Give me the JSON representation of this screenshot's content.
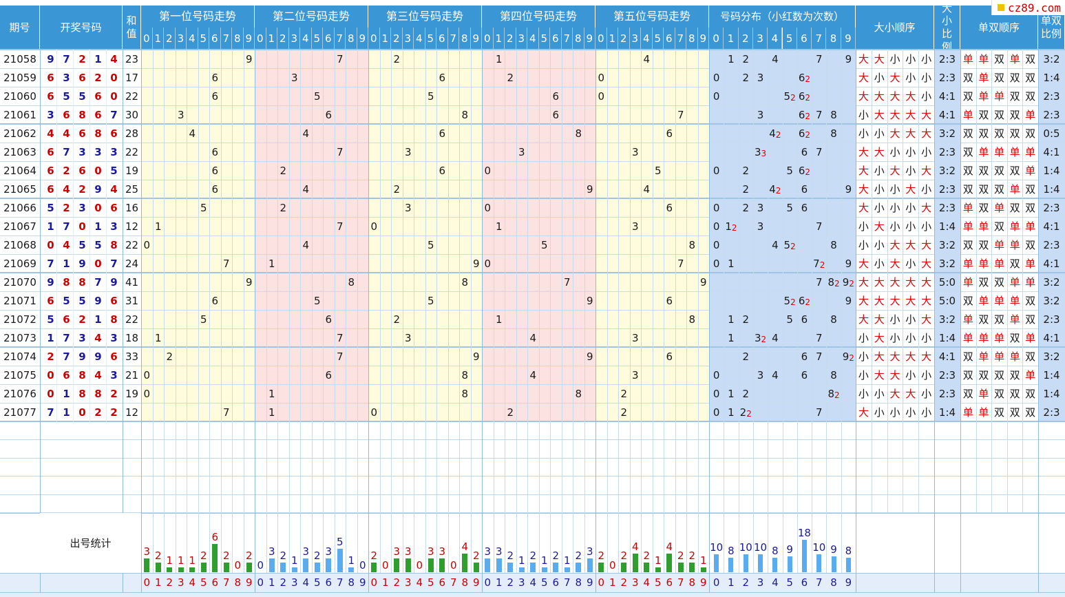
{
  "logo": {
    "text": "cz89.com",
    "color": "#cc0000"
  },
  "colors": {
    "header": "#3b96d6",
    "yellow": "#fefcdc",
    "pink": "#fde2e2",
    "blue": "#c9dcf5",
    "bar_green": "#2e9e2e",
    "bar_blue": "#5aacf0",
    "red": "#e00000"
  },
  "headers": {
    "issue": "期号",
    "draw": "开奖号码",
    "sum": "和值",
    "pos1": "第一位号码走势",
    "pos2": "第二位号码走势",
    "pos3": "第三位号码走势",
    "pos4": "第四位号码走势",
    "pos5": "第五位号码走势",
    "dist": "号码分布（小红数为次数）",
    "bigsmall_order": "大小顺序",
    "bigsmall_ratio": "大小比例",
    "oddeven_order": "单双顺序",
    "oddeven_ratio": "单双比例"
  },
  "digits": [
    "0",
    "1",
    "2",
    "3",
    "4",
    "5",
    "6",
    "7",
    "8",
    "9"
  ],
  "stats_label": "出号统计",
  "rows": [
    {
      "issue": "21058",
      "nums": [
        9,
        7,
        2,
        1,
        4
      ],
      "sum": "23",
      "bs": [
        "大",
        "大",
        "小",
        "小",
        "小"
      ],
      "bsr": "2:3",
      "oe": [
        "单",
        "单",
        "双",
        "单",
        "双"
      ],
      "oer": "3:2"
    },
    {
      "issue": "21059",
      "nums": [
        6,
        3,
        6,
        2,
        0
      ],
      "sum": "17",
      "bs": [
        "大",
        "小",
        "大",
        "小",
        "小"
      ],
      "bsr": "2:3",
      "oe": [
        "双",
        "单",
        "双",
        "双",
        "双"
      ],
      "oer": "1:4"
    },
    {
      "issue": "21060",
      "nums": [
        6,
        5,
        5,
        6,
        0
      ],
      "sum": "22",
      "bs": [
        "大",
        "大",
        "大",
        "大",
        "小"
      ],
      "bsr": "4:1",
      "oe": [
        "双",
        "单",
        "单",
        "双",
        "双"
      ],
      "oer": "2:3"
    },
    {
      "issue": "21061",
      "nums": [
        3,
        6,
        8,
        6,
        7
      ],
      "sum": "30",
      "bs": [
        "小",
        "大",
        "大",
        "大",
        "大"
      ],
      "bsr": "4:1",
      "oe": [
        "单",
        "双",
        "双",
        "双",
        "单"
      ],
      "oer": "2:3"
    },
    {
      "issue": "21062",
      "nums": [
        4,
        4,
        6,
        8,
        6
      ],
      "sum": "28",
      "bs": [
        "小",
        "小",
        "大",
        "大",
        "大"
      ],
      "bsr": "3:2",
      "oe": [
        "双",
        "双",
        "双",
        "双",
        "双"
      ],
      "oer": "0:5"
    },
    {
      "issue": "21063",
      "nums": [
        6,
        7,
        3,
        3,
        3
      ],
      "sum": "22",
      "bs": [
        "大",
        "大",
        "小",
        "小",
        "小"
      ],
      "bsr": "2:3",
      "oe": [
        "双",
        "单",
        "单",
        "单",
        "单"
      ],
      "oer": "4:1"
    },
    {
      "issue": "21064",
      "nums": [
        6,
        2,
        6,
        0,
        5
      ],
      "sum": "19",
      "bs": [
        "大",
        "小",
        "大",
        "小",
        "大"
      ],
      "bsr": "3:2",
      "oe": [
        "双",
        "双",
        "双",
        "双",
        "单"
      ],
      "oer": "1:4"
    },
    {
      "issue": "21065",
      "nums": [
        6,
        4,
        2,
        9,
        4
      ],
      "sum": "25",
      "bs": [
        "大",
        "小",
        "小",
        "大",
        "小"
      ],
      "bsr": "2:3",
      "oe": [
        "双",
        "双",
        "双",
        "单",
        "双"
      ],
      "oer": "1:4"
    },
    {
      "issue": "21066",
      "nums": [
        5,
        2,
        3,
        0,
        6
      ],
      "sum": "16",
      "bs": [
        "大",
        "小",
        "小",
        "小",
        "大"
      ],
      "bsr": "2:3",
      "oe": [
        "单",
        "双",
        "单",
        "双",
        "双"
      ],
      "oer": "2:3"
    },
    {
      "issue": "21067",
      "nums": [
        1,
        7,
        0,
        1,
        3
      ],
      "sum": "12",
      "bs": [
        "小",
        "大",
        "小",
        "小",
        "小"
      ],
      "bsr": "1:4",
      "oe": [
        "单",
        "单",
        "双",
        "单",
        "单"
      ],
      "oer": "4:1"
    },
    {
      "issue": "21068",
      "nums": [
        0,
        4,
        5,
        5,
        8
      ],
      "sum": "22",
      "bs": [
        "小",
        "小",
        "大",
        "大",
        "大"
      ],
      "bsr": "3:2",
      "oe": [
        "双",
        "双",
        "单",
        "单",
        "双"
      ],
      "oer": "2:3"
    },
    {
      "issue": "21069",
      "nums": [
        7,
        1,
        9,
        0,
        7
      ],
      "sum": "24",
      "bs": [
        "大",
        "小",
        "大",
        "小",
        "大"
      ],
      "bsr": "3:2",
      "oe": [
        "单",
        "单",
        "单",
        "双",
        "单"
      ],
      "oer": "4:1"
    },
    {
      "issue": "21070",
      "nums": [
        9,
        8,
        8,
        7,
        9
      ],
      "sum": "41",
      "bs": [
        "大",
        "大",
        "大",
        "大",
        "大"
      ],
      "bsr": "5:0",
      "oe": [
        "单",
        "双",
        "双",
        "单",
        "单"
      ],
      "oer": "3:2"
    },
    {
      "issue": "21071",
      "nums": [
        6,
        5,
        5,
        9,
        6
      ],
      "sum": "31",
      "bs": [
        "大",
        "大",
        "大",
        "大",
        "大"
      ],
      "bsr": "5:0",
      "oe": [
        "双",
        "单",
        "单",
        "单",
        "双"
      ],
      "oer": "3:2"
    },
    {
      "issue": "21072",
      "nums": [
        5,
        6,
        2,
        1,
        8
      ],
      "sum": "22",
      "bs": [
        "大",
        "大",
        "小",
        "小",
        "大"
      ],
      "bsr": "3:2",
      "oe": [
        "单",
        "双",
        "双",
        "单",
        "双"
      ],
      "oer": "2:3"
    },
    {
      "issue": "21073",
      "nums": [
        1,
        7,
        3,
        4,
        3
      ],
      "sum": "18",
      "bs": [
        "小",
        "大",
        "小",
        "小",
        "小"
      ],
      "bsr": "1:4",
      "oe": [
        "单",
        "单",
        "单",
        "双",
        "单"
      ],
      "oer": "4:1"
    },
    {
      "issue": "21074",
      "nums": [
        2,
        7,
        9,
        9,
        6
      ],
      "sum": "33",
      "bs": [
        "小",
        "大",
        "大",
        "大",
        "大"
      ],
      "bsr": "4:1",
      "oe": [
        "双",
        "单",
        "单",
        "单",
        "双"
      ],
      "oer": "3:2"
    },
    {
      "issue": "21075",
      "nums": [
        0,
        6,
        8,
        4,
        3
      ],
      "sum": "21",
      "bs": [
        "小",
        "大",
        "大",
        "小",
        "小"
      ],
      "bsr": "2:3",
      "oe": [
        "双",
        "双",
        "双",
        "双",
        "单"
      ],
      "oer": "1:4"
    },
    {
      "issue": "21076",
      "nums": [
        0,
        1,
        8,
        8,
        2
      ],
      "sum": "19",
      "bs": [
        "小",
        "小",
        "大",
        "大",
        "小"
      ],
      "bsr": "2:3",
      "oe": [
        "双",
        "单",
        "双",
        "双",
        "双"
      ],
      "oer": "1:4"
    },
    {
      "issue": "21077",
      "nums": [
        7,
        1,
        0,
        2,
        2
      ],
      "sum": "12",
      "bs": [
        "大",
        "小",
        "小",
        "小",
        "小"
      ],
      "bsr": "1:4",
      "oe": [
        "单",
        "单",
        "双",
        "双",
        "双"
      ],
      "oer": "2:3"
    }
  ],
  "chart_data": {
    "type": "bar",
    "categories": [
      "0",
      "1",
      "2",
      "3",
      "4",
      "5",
      "6",
      "7",
      "8",
      "9"
    ],
    "series": [
      {
        "name": "第一位号码走势",
        "values": [
          3,
          2,
          1,
          1,
          1,
          2,
          6,
          2,
          0,
          2
        ]
      },
      {
        "name": "第二位号码走势",
        "values": [
          0,
          3,
          2,
          1,
          3,
          2,
          3,
          5,
          1,
          0
        ]
      },
      {
        "name": "第三位号码走势",
        "values": [
          2,
          0,
          3,
          3,
          0,
          3,
          3,
          0,
          4,
          2
        ]
      },
      {
        "name": "第四位号码走势",
        "values": [
          3,
          3,
          2,
          1,
          2,
          1,
          2,
          1,
          2,
          3
        ]
      },
      {
        "name": "第五位号码走势",
        "values": [
          2,
          0,
          2,
          4,
          2,
          1,
          4,
          2,
          2,
          1
        ]
      },
      {
        "name": "号码分布（小红数为次数）",
        "values": [
          10,
          8,
          10,
          10,
          8,
          9,
          18,
          10,
          9,
          8
        ]
      }
    ]
  }
}
